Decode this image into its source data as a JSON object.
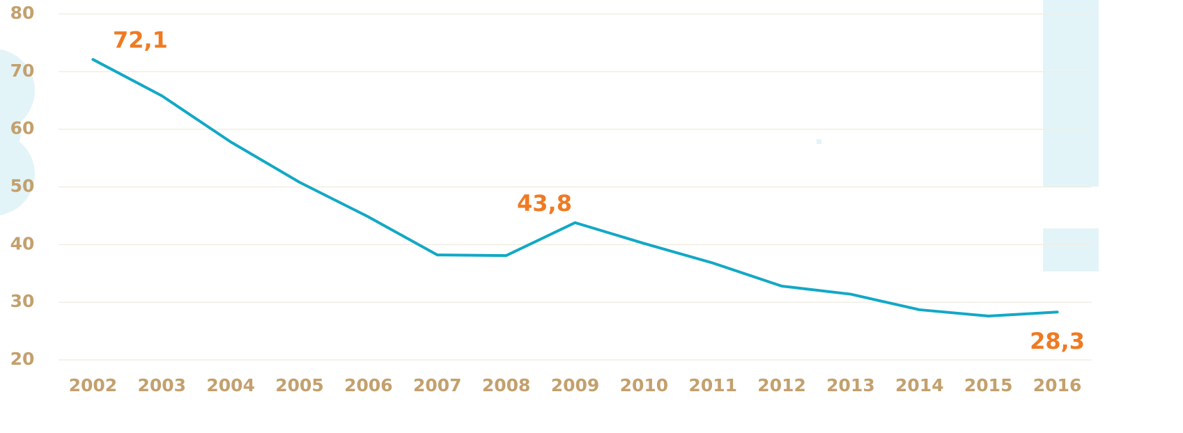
{
  "chart_data": {
    "type": "line",
    "categories": [
      "2002",
      "2003",
      "2004",
      "2005",
      "2006",
      "2007",
      "2008",
      "2009",
      "2010",
      "2011",
      "2012",
      "2013",
      "2014",
      "2015",
      "2016"
    ],
    "values": [
      72.1,
      65.8,
      57.8,
      50.8,
      44.8,
      38.2,
      38.1,
      43.8,
      40.2,
      36.8,
      32.8,
      31.4,
      28.7,
      27.6,
      28.3
    ],
    "value_labels": [
      "72,1",
      null,
      null,
      null,
      null,
      null,
      null,
      "43,8",
      null,
      null,
      null,
      null,
      null,
      null,
      "28,3"
    ],
    "color": "#12a8c6",
    "ylim": [
      20,
      80
    ],
    "yticks": [
      20,
      30,
      40,
      50,
      60,
      70,
      80
    ],
    "grid": true
  }
}
